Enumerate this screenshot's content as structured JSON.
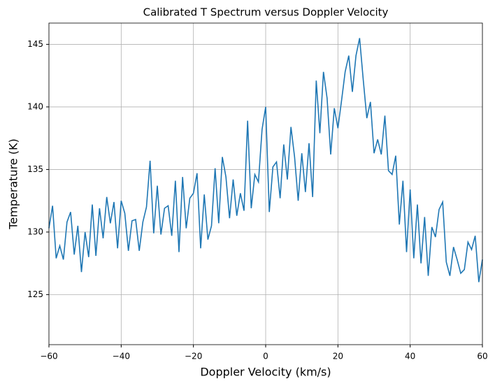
{
  "chart_data": {
    "type": "line",
    "title": "Calibrated T Spectrum versus Doppler Velocity",
    "x_label": "Doppler Velocity (km/s)",
    "y_label": "Temperature (K)",
    "x": [
      -60,
      -59,
      -58,
      -57,
      -56,
      -55,
      -54,
      -53,
      -52,
      -51,
      -50,
      -49,
      -48,
      -47,
      -46,
      -45,
      -44,
      -43,
      -42,
      -41,
      -40,
      -39,
      -38,
      -37,
      -36,
      -35,
      -34,
      -33,
      -32,
      -31,
      -30,
      -29,
      -28,
      -27,
      -26,
      -25,
      -24,
      -23,
      -22,
      -21,
      -20,
      -19,
      -18,
      -17,
      -16,
      -15,
      -14,
      -13,
      -12,
      -11,
      -10,
      -9,
      -8,
      -7,
      -6,
      -5,
      -4,
      -3,
      -2,
      -1,
      0,
      1,
      2,
      3,
      4,
      5,
      6,
      7,
      8,
      9,
      10,
      11,
      12,
      13,
      14,
      15,
      16,
      17,
      18,
      19,
      20,
      21,
      22,
      23,
      24,
      25,
      26,
      27,
      28,
      29,
      30,
      31,
      32,
      33,
      34,
      35,
      36,
      37,
      38,
      39,
      40,
      41,
      42,
      43,
      44,
      45,
      46,
      47,
      48,
      49,
      50,
      51,
      52,
      53,
      54,
      55,
      56,
      57,
      58,
      59,
      60
    ],
    "series": [
      {
        "color": "#1f77b4",
        "values": [
          130.3,
          132.1,
          127.9,
          128.9,
          127.8,
          130.8,
          131.6,
          128.2,
          130.5,
          126.8,
          130.0,
          128.0,
          132.2,
          128.1,
          131.9,
          129.5,
          132.8,
          130.7,
          132.4,
          128.7,
          132.5,
          131.5,
          128.5,
          130.9,
          131.0,
          128.5,
          130.8,
          132.0,
          135.7,
          129.9,
          133.7,
          129.8,
          131.9,
          132.1,
          129.7,
          134.1,
          128.4,
          134.4,
          130.3,
          132.7,
          133.1,
          134.7,
          128.7,
          133.0,
          129.4,
          130.5,
          135.1,
          130.7,
          136.0,
          134.4,
          131.1,
          134.2,
          131.3,
          133.1,
          131.7,
          138.9,
          131.9,
          134.6,
          134.0,
          138.2,
          140.0,
          131.6,
          135.2,
          135.6,
          132.7,
          137.0,
          134.2,
          138.4,
          136.0,
          132.5,
          136.3,
          133.2,
          137.1,
          132.8,
          142.1,
          137.9,
          142.8,
          140.7,
          136.2,
          139.9,
          138.3,
          140.5,
          142.8,
          144.1,
          141.2,
          144.1,
          145.5,
          142.2,
          139.1,
          140.4,
          136.3,
          137.4,
          136.2,
          139.3,
          134.9,
          134.6,
          136.1,
          130.6,
          134.1,
          128.4,
          133.4,
          127.9,
          132.2,
          127.5,
          131.2,
          126.5,
          130.4,
          129.6,
          131.8,
          132.4,
          127.6,
          126.5,
          128.8,
          127.8,
          126.7,
          127.0,
          129.2,
          128.6,
          129.7,
          126.0,
          127.8
        ]
      }
    ],
    "xlim": [
      -60,
      60
    ],
    "ylim": [
      121,
      146.7
    ],
    "xticks": [
      {
        "value": -60,
        "label": "−60"
      },
      {
        "value": -40,
        "label": "−40"
      },
      {
        "value": -20,
        "label": "−20"
      },
      0,
      20,
      40,
      60
    ],
    "yticks": [
      125,
      130,
      135,
      140,
      145
    ],
    "grid": true
  }
}
